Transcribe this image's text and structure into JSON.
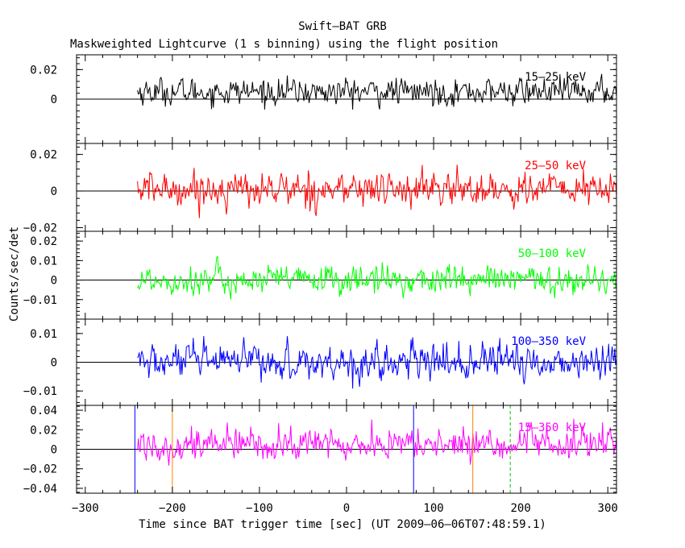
{
  "title": "Swift–BAT GRB",
  "subtitle": "Maskweighted Lightcurve (1 s binning) using the flight position",
  "colors": {
    "axis": "#000000",
    "panel_1": "#000000",
    "panel_2": "#ff0000",
    "panel_3": "#00ff00",
    "panel_4": "#0000ff",
    "panel_5": "#ff00ff",
    "orange_marker": "#ff8000",
    "blue_marker": "#0000ff",
    "green_marker": "#00c000"
  },
  "chart_data": {
    "type": "line",
    "title": "Swift–BAT GRB",
    "subtitle": "Maskweighted Lightcurve (1 s binning) using the flight position",
    "xlabel": "Time since BAT trigger time [sec] (UT 2009–06–06T07:48:59.1)",
    "ylabel": "Counts/sec/det",
    "xlim": [
      -310,
      310
    ],
    "x_ticks": [
      -300,
      -200,
      -100,
      0,
      100,
      200,
      300
    ],
    "x_tick_labels": [
      "−300",
      "−200",
      "−100",
      "0",
      "100",
      "200",
      "300"
    ],
    "data_x_range": [
      -240,
      310
    ],
    "binning_sec": 1,
    "panels": [
      {
        "name": "15–25 keV",
        "ylim": [
          -0.03,
          0.03
        ],
        "y_ticks": [
          0,
          0.02
        ],
        "y_tick_labels": [
          "0",
          "0.02"
        ],
        "baseline": 0.005,
        "noise_sigma": 0.0065
      },
      {
        "name": "25–50 keV",
        "ylim": [
          -0.022,
          0.026
        ],
        "y_ticks": [
          -0.02,
          0,
          0.02
        ],
        "y_tick_labels": [
          "−0.02",
          "0",
          "0.02"
        ],
        "baseline": 0.001,
        "noise_sigma": 0.0068
      },
      {
        "name": "50–100 keV",
        "ylim": [
          -0.02,
          0.025
        ],
        "y_ticks": [
          -0.01,
          0,
          0.01,
          0.02
        ],
        "y_tick_labels": [
          "−0.01",
          "0",
          "0.01",
          "0.02"
        ],
        "baseline": 0.0,
        "noise_sigma": 0.0055
      },
      {
        "name": "100–350 keV",
        "ylim": [
          -0.015,
          0.015
        ],
        "y_ticks": [
          -0.01,
          0,
          0.01
        ],
        "y_tick_labels": [
          "−0.01",
          "0",
          "0.01"
        ],
        "baseline": 0.0,
        "noise_sigma": 0.0045
      },
      {
        "name": "15–350 keV",
        "ylim": [
          -0.045,
          0.045
        ],
        "y_ticks": [
          -0.04,
          -0.02,
          0,
          0.02,
          0.04
        ],
        "y_tick_labels": [
          "−0.04",
          "−0.02",
          "0",
          "0.02",
          "0.04"
        ],
        "baseline": 0.005,
        "noise_sigma": 0.012
      }
    ],
    "vertical_markers": [
      {
        "x": -243,
        "color": "#0000ff",
        "style": "solid"
      },
      {
        "x": -200,
        "color": "#ff8000",
        "style": "solid"
      },
      {
        "x": 77,
        "color": "#0000ff",
        "style": "solid"
      },
      {
        "x": 145,
        "color": "#ff8000",
        "style": "solid"
      },
      {
        "x": 188,
        "color": "#00c000",
        "style": "dashed"
      }
    ],
    "grid": false,
    "legend": "none (band names printed inside each panel, top-right)"
  }
}
